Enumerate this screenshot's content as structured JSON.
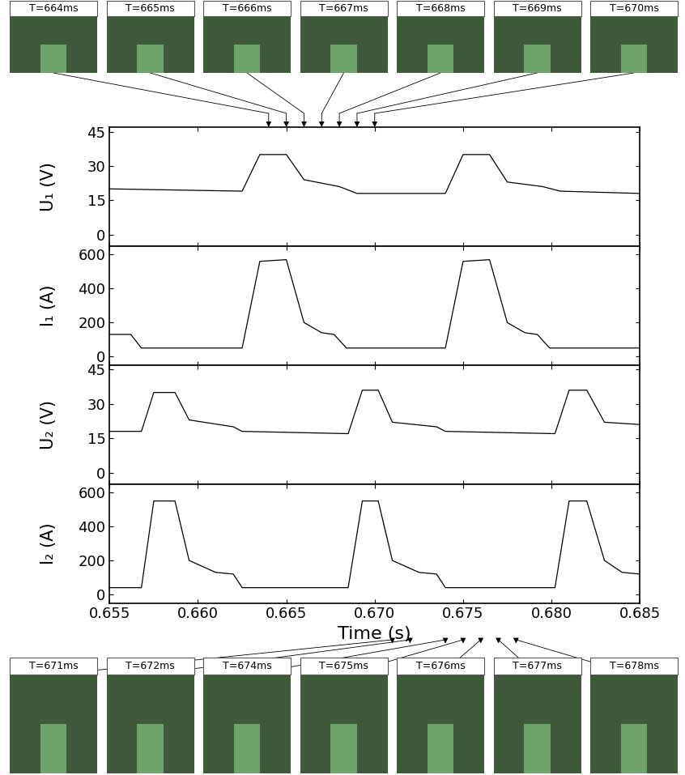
{
  "chart_data": [
    {
      "type": "line",
      "ylabel": "U₁ (V)",
      "color": "#000000",
      "tick_labels": "y",
      "x": [
        0.655,
        0.6625,
        0.6635,
        0.665,
        0.666,
        0.668,
        0.669,
        0.674,
        0.675,
        0.6765,
        0.6775,
        0.6795,
        0.6805,
        0.685
      ],
      "values": [
        20,
        19,
        35,
        35,
        24,
        21,
        18,
        18,
        35,
        35,
        23,
        21,
        19,
        18
      ],
      "xlim": [
        0.655,
        0.685
      ],
      "ylim": [
        -5,
        47
      ],
      "yticks": [
        0,
        15,
        30,
        45
      ],
      "xticks": [
        0.655,
        {
          "value": 0.66,
          "label": "0.660"
        },
        0.665,
        {
          "value": 0.67,
          "label": "0.670"
        },
        0.675,
        {
          "value": 0.68,
          "label": "0.680"
        },
        0.685
      ]
    },
    {
      "type": "line",
      "ylabel": "I₁ (A)",
      "color": "#000000",
      "tick_labels": "y",
      "x": [
        0.655,
        0.6562,
        0.6568,
        0.6625,
        0.6635,
        0.665,
        0.666,
        0.667,
        0.6677,
        0.6684,
        0.674,
        0.675,
        0.6765,
        0.6775,
        0.6785,
        0.6792,
        0.6799,
        0.685
      ],
      "values": [
        130,
        130,
        50,
        50,
        560,
        570,
        200,
        140,
        130,
        50,
        50,
        560,
        570,
        200,
        140,
        130,
        50,
        50
      ],
      "xlim": [
        0.655,
        0.685
      ],
      "ylim": [
        -50,
        650
      ],
      "yticks": [
        0,
        200,
        400,
        600
      ],
      "xticks": [
        0.655,
        {
          "value": 0.66,
          "label": "0.660"
        },
        0.665,
        {
          "value": 0.67,
          "label": "0.670"
        },
        0.675,
        {
          "value": 0.68,
          "label": "0.680"
        },
        0.685
      ]
    },
    {
      "type": "line",
      "ylabel": "U₂ (V)",
      "color": "#000000",
      "tick_labels": "y",
      "x": [
        0.655,
        0.6568,
        0.6575,
        0.6587,
        0.6595,
        0.662,
        0.6625,
        0.6685,
        0.6693,
        0.6702,
        0.671,
        0.6735,
        0.674,
        0.6802,
        0.681,
        0.682,
        0.683,
        0.685
      ],
      "values": [
        18,
        18,
        35,
        35,
        23,
        20,
        18,
        17,
        36,
        36,
        22,
        20,
        18,
        17,
        36,
        36,
        22,
        21
      ],
      "xlim": [
        0.655,
        0.685
      ],
      "ylim": [
        -5,
        47
      ],
      "yticks": [
        0,
        15,
        30,
        45
      ],
      "xticks": [
        0.655,
        {
          "value": 0.66,
          "label": "0.660"
        },
        0.665,
        {
          "value": 0.67,
          "label": "0.670"
        },
        0.675,
        {
          "value": 0.68,
          "label": "0.680"
        },
        0.685
      ]
    },
    {
      "type": "line",
      "ylabel": "I₂ (A)",
      "xlabel": "Time (s)",
      "color": "#000000",
      "x": [
        0.655,
        0.6568,
        0.6575,
        0.6587,
        0.6595,
        0.661,
        0.662,
        0.6625,
        0.6685,
        0.6693,
        0.6702,
        0.671,
        0.6725,
        0.6735,
        0.674,
        0.6802,
        0.681,
        0.682,
        0.683,
        0.684,
        0.685
      ],
      "values": [
        40,
        40,
        550,
        550,
        200,
        130,
        120,
        40,
        40,
        550,
        550,
        200,
        130,
        120,
        40,
        40,
        550,
        550,
        200,
        130,
        120
      ],
      "xlim": [
        0.655,
        0.685
      ],
      "ylim": [
        -50,
        650
      ],
      "yticks": [
        0,
        200,
        400,
        600
      ],
      "xticks": [
        0.655,
        {
          "value": 0.66,
          "label": "0.660"
        },
        0.665,
        {
          "value": 0.67,
          "label": "0.670"
        },
        0.675,
        {
          "value": 0.68,
          "label": "0.680"
        },
        0.685
      ]
    }
  ],
  "frames": {
    "top": [
      {
        "label": "T=664ms",
        "time": 0.664
      },
      {
        "label": "T=665ms",
        "time": 0.665
      },
      {
        "label": "T=666ms",
        "time": 0.666
      },
      {
        "label": "T=667ms",
        "time": 0.667
      },
      {
        "label": "T=668ms",
        "time": 0.668
      },
      {
        "label": "T=669ms",
        "time": 0.669
      },
      {
        "label": "T=670ms",
        "time": 0.67
      }
    ],
    "bottom": [
      {
        "label": "T=671ms",
        "time": 0.671
      },
      {
        "label": "T=672ms",
        "time": 0.672
      },
      {
        "label": "T=674ms",
        "time": 0.674
      },
      {
        "label": "T=675ms",
        "time": 0.675
      },
      {
        "label": "T=676ms",
        "time": 0.676
      },
      {
        "label": "T=677ms",
        "time": 0.677
      },
      {
        "label": "T=678ms",
        "time": 0.678
      }
    ]
  }
}
